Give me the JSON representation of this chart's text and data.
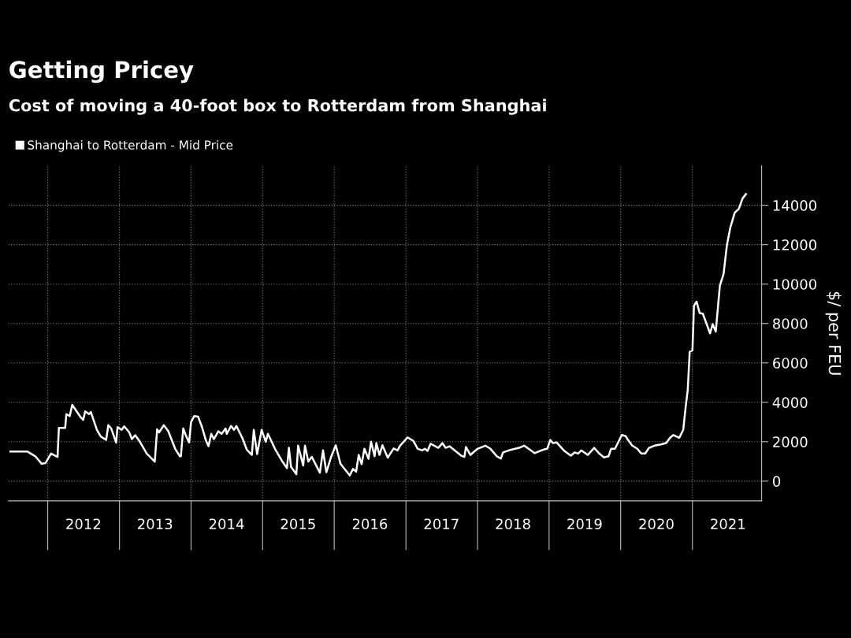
{
  "chart_data": {
    "type": "line",
    "title": "Getting Pricey",
    "subtitle": "Cost of moving a 40-foot box to Rotterdam from Shanghai",
    "ylabel": "$/ per FEU",
    "x": [
      "2011-06-25",
      "2011-09-20",
      "2011-10-30",
      "2011-12-01",
      "2011-12-20",
      "2012-01-18",
      "2012-02-20",
      "2012-02-27",
      "2012-03-30",
      "2012-04-05",
      "2012-04-22",
      "2012-05-05",
      "2012-06-15",
      "2012-06-30",
      "2012-07-10",
      "2012-07-30",
      "2012-08-08",
      "2012-09-08",
      "2012-09-28",
      "2012-10-25",
      "2012-11-05",
      "2012-11-20",
      "2012-12-15",
      "2012-12-22",
      "2013-01-12",
      "2013-01-25",
      "2013-02-20",
      "2013-03-05",
      "2013-03-22",
      "2013-04-15",
      "2013-05-20",
      "2013-06-30",
      "2013-07-12",
      "2013-07-22",
      "2013-08-15",
      "2013-09-07",
      "2013-10-12",
      "2013-11-05",
      "2013-11-10",
      "2013-11-22",
      "2013-12-05",
      "2013-12-22",
      "2014-01-01",
      "2014-01-17",
      "2014-02-06",
      "2014-02-26",
      "2014-03-18",
      "2014-03-31",
      "2014-04-14",
      "2014-04-27",
      "2014-05-20",
      "2014-06-06",
      "2014-06-26",
      "2014-07-02",
      "2014-07-24",
      "2014-08-08",
      "2014-08-20",
      "2014-09-19",
      "2014-10-12",
      "2014-11-07",
      "2014-11-17",
      "2014-12-04",
      "2014-12-27",
      "2015-01-17",
      "2015-01-28",
      "2015-03-05",
      "2015-04-12",
      "2015-05-05",
      "2015-05-15",
      "2015-05-26",
      "2015-06-22",
      "2015-07-01",
      "2015-07-27",
      "2015-08-05",
      "2015-08-22",
      "2015-09-09",
      "2015-10-20",
      "2015-11-05",
      "2015-11-22",
      "2015-12-15",
      "2016-01-09",
      "2016-02-02",
      "2016-03-20",
      "2016-04-06",
      "2016-04-22",
      "2016-05-05",
      "2016-05-20",
      "2016-06-03",
      "2016-06-24",
      "2016-07-07",
      "2016-07-25",
      "2016-08-03",
      "2016-08-19",
      "2016-09-03",
      "2016-09-30",
      "2016-10-30",
      "2016-11-19",
      "2016-12-02",
      "2017-01-09",
      "2017-02-08",
      "2017-03-02",
      "2017-03-26",
      "2017-04-07",
      "2017-04-21",
      "2017-05-07",
      "2017-06-15",
      "2017-07-06",
      "2017-07-22",
      "2017-08-11",
      "2017-10-10",
      "2017-10-26",
      "2017-11-03",
      "2017-11-26",
      "2018-01-01",
      "2018-02-10",
      "2018-03-08",
      "2018-04-10",
      "2018-04-30",
      "2018-05-11",
      "2018-06-09",
      "2018-08-01",
      "2018-08-27",
      "2018-10-19",
      "2018-11-14",
      "2018-12-04",
      "2018-12-22",
      "2019-01-07",
      "2019-01-20",
      "2019-02-09",
      "2019-03-20",
      "2019-04-22",
      "2019-05-12",
      "2019-05-29",
      "2019-06-14",
      "2019-07-17",
      "2019-08-19",
      "2019-09-14",
      "2019-10-08",
      "2019-10-31",
      "2019-11-13",
      "2019-12-03",
      "2020-01-07",
      "2020-01-27",
      "2020-02-09",
      "2020-02-29",
      "2020-03-26",
      "2020-04-15",
      "2020-05-05",
      "2020-05-25",
      "2020-06-21",
      "2020-07-24",
      "2020-08-20",
      "2020-09-09",
      "2020-09-26",
      "2020-10-26",
      "2020-11-15",
      "2020-11-28",
      "2020-12-08",
      "2020-12-18",
      "2021-01-01",
      "2021-01-09",
      "2021-01-22",
      "2021-02-07",
      "2021-02-23",
      "2021-04-01",
      "2021-04-14",
      "2021-04-30",
      "2021-05-21",
      "2021-06-09",
      "2021-06-26",
      "2021-07-13",
      "2021-08-05",
      "2021-08-25",
      "2021-09-14",
      "2021-10-01"
    ],
    "series": [
      {
        "name": "Shanghai to Rotterdam - Mid Price",
        "color": "#ffffff",
        "values": [
          1500,
          1500,
          1260,
          880,
          910,
          1400,
          1230,
          2700,
          2700,
          3400,
          3300,
          3870,
          3270,
          3110,
          3540,
          3400,
          3510,
          2600,
          2260,
          2090,
          2840,
          2670,
          1960,
          2740,
          2600,
          2780,
          2470,
          2130,
          2330,
          2000,
          1400,
          990,
          2630,
          2470,
          2840,
          2530,
          1640,
          1260,
          1260,
          2670,
          2330,
          1960,
          3000,
          3300,
          3270,
          2740,
          2060,
          1770,
          2400,
          2130,
          2530,
          2400,
          2670,
          2400,
          2800,
          2600,
          2800,
          2200,
          1600,
          1330,
          2600,
          1370,
          2600,
          2000,
          2400,
          1640,
          990,
          660,
          1690,
          720,
          350,
          1800,
          790,
          1800,
          990,
          1230,
          430,
          1560,
          450,
          1190,
          1820,
          880,
          290,
          620,
          480,
          1330,
          860,
          1640,
          1130,
          2000,
          1260,
          1930,
          1330,
          1820,
          1190,
          1660,
          1560,
          1800,
          2220,
          2040,
          1640,
          1560,
          1640,
          1530,
          1900,
          1690,
          1930,
          1690,
          1770,
          1290,
          1230,
          1730,
          1330,
          1640,
          1800,
          1640,
          1260,
          1150,
          1460,
          1560,
          1690,
          1800,
          1420,
          1530,
          1600,
          1640,
          2090,
          1930,
          1960,
          1530,
          1290,
          1460,
          1400,
          1560,
          1330,
          1690,
          1400,
          1200,
          1260,
          1640,
          1640,
          2340,
          2280,
          2070,
          1800,
          1640,
          1400,
          1400,
          1690,
          1800,
          1860,
          1930,
          2200,
          2340,
          2200,
          2600,
          3810,
          4610,
          6560,
          6630,
          8900,
          9110,
          8530,
          8500,
          7500,
          7970,
          7590,
          9920,
          10520,
          11990,
          12860,
          13630,
          13810,
          14350,
          14570
        ]
      }
    ],
    "xlim": [
      "2011-06-15",
      "2021-12-20"
    ],
    "xticks": [
      {
        "value": "2012-01-01",
        "label": null
      },
      {
        "value": "2012-07-01",
        "label": "2012"
      },
      {
        "value": "2013-01-01",
        "label": null
      },
      {
        "value": "2013-07-01",
        "label": "2013"
      },
      {
        "value": "2014-01-01",
        "label": null
      },
      {
        "value": "2014-07-01",
        "label": "2014"
      },
      {
        "value": "2015-01-01",
        "label": null
      },
      {
        "value": "2015-07-01",
        "label": "2015"
      },
      {
        "value": "2016-01-01",
        "label": null
      },
      {
        "value": "2016-07-01",
        "label": "2016"
      },
      {
        "value": "2017-01-01",
        "label": null
      },
      {
        "value": "2017-07-01",
        "label": "2017"
      },
      {
        "value": "2018-01-01",
        "label": null
      },
      {
        "value": "2018-07-01",
        "label": "2018"
      },
      {
        "value": "2019-01-01",
        "label": null
      },
      {
        "value": "2019-07-01",
        "label": "2019"
      },
      {
        "value": "2020-01-01",
        "label": null
      },
      {
        "value": "2020-07-01",
        "label": "2020"
      },
      {
        "value": "2021-01-01",
        "label": null
      },
      {
        "value": "2021-07-01",
        "label": "2021"
      }
    ],
    "ylim": [
      -1000,
      16000
    ],
    "yticks": [
      0,
      2000,
      4000,
      6000,
      8000,
      10000,
      12000,
      14000
    ],
    "grid": true,
    "legend": "top left",
    "marker": "none",
    "line_style": "solid"
  }
}
